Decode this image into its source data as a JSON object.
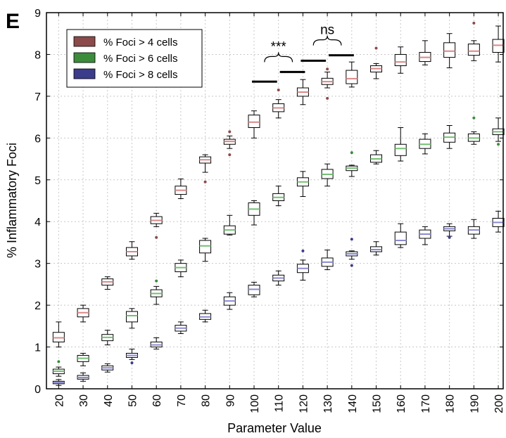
{
  "panel_label": "E",
  "chart_data": {
    "type": "box",
    "xlabel": "Parameter Value",
    "ylabel": "% Inflammatory Foci",
    "categories": [
      "20",
      "30",
      "40",
      "50",
      "60",
      "70",
      "80",
      "90",
      "100",
      "110",
      "120",
      "130",
      "140",
      "150",
      "160",
      "170",
      "180",
      "190",
      "200"
    ],
    "x": [
      20,
      30,
      40,
      50,
      60,
      70,
      80,
      90,
      100,
      110,
      120,
      130,
      140,
      150,
      160,
      170,
      180,
      190,
      200
    ],
    "xlim": [
      15,
      202
    ],
    "ylim": [
      0,
      9
    ],
    "yticks": [
      0,
      1,
      2,
      3,
      4,
      5,
      6,
      7,
      8,
      9
    ],
    "grid": true,
    "legend_position": "top-left",
    "series": [
      {
        "name": "% Foci > 4 cells",
        "color": "#8c4a4a",
        "median_color": "#d98888",
        "boxes": [
          {
            "q1": 1.12,
            "median": 1.22,
            "q3": 1.35,
            "whisker_low": 1.0,
            "whisker_high": 1.6,
            "outliers": []
          },
          {
            "q1": 1.72,
            "median": 1.82,
            "q3": 1.92,
            "whisker_low": 1.6,
            "whisker_high": 2.0,
            "outliers": []
          },
          {
            "q1": 2.48,
            "median": 2.56,
            "q3": 2.63,
            "whisker_low": 2.38,
            "whisker_high": 2.68,
            "outliers": []
          },
          {
            "q1": 3.18,
            "median": 3.28,
            "q3": 3.38,
            "whisker_low": 3.1,
            "whisker_high": 3.52,
            "outliers": []
          },
          {
            "q1": 3.95,
            "median": 4.03,
            "q3": 4.12,
            "whisker_low": 3.88,
            "whisker_high": 4.2,
            "outliers": [
              3.62
            ]
          },
          {
            "q1": 4.65,
            "median": 4.75,
            "q3": 4.85,
            "whisker_low": 4.55,
            "whisker_high": 5.02,
            "outliers": []
          },
          {
            "q1": 5.4,
            "median": 5.48,
            "q3": 5.55,
            "whisker_low": 5.18,
            "whisker_high": 5.6,
            "outliers": [
              4.95
            ]
          },
          {
            "q1": 5.85,
            "median": 5.92,
            "q3": 5.97,
            "whisker_low": 5.75,
            "whisker_high": 6.05,
            "outliers": [
              5.6,
              6.15
            ]
          },
          {
            "q1": 6.25,
            "median": 6.38,
            "q3": 6.55,
            "whisker_low": 6.0,
            "whisker_high": 6.65,
            "outliers": []
          },
          {
            "q1": 6.63,
            "median": 6.72,
            "q3": 6.82,
            "whisker_low": 6.48,
            "whisker_high": 6.92,
            "outliers": [
              7.15
            ]
          },
          {
            "q1": 7.0,
            "median": 7.1,
            "q3": 7.2,
            "whisker_low": 6.8,
            "whisker_high": 7.4,
            "outliers": []
          },
          {
            "q1": 7.28,
            "median": 7.35,
            "q3": 7.43,
            "whisker_low": 7.2,
            "whisker_high": 7.58,
            "outliers": [
              6.95,
              7.65
            ]
          },
          {
            "q1": 7.3,
            "median": 7.42,
            "q3": 7.62,
            "whisker_low": 7.22,
            "whisker_high": 7.82,
            "outliers": []
          },
          {
            "q1": 7.58,
            "median": 7.66,
            "q3": 7.73,
            "whisker_low": 7.42,
            "whisker_high": 7.78,
            "outliers": [
              8.15
            ]
          },
          {
            "q1": 7.73,
            "median": 7.82,
            "q3": 8.0,
            "whisker_low": 7.55,
            "whisker_high": 8.18,
            "outliers": []
          },
          {
            "q1": 7.83,
            "median": 7.93,
            "q3": 8.05,
            "whisker_low": 7.75,
            "whisker_high": 8.33,
            "outliers": []
          },
          {
            "q1": 7.93,
            "median": 8.08,
            "q3": 8.28,
            "whisker_low": 7.68,
            "whisker_high": 8.5,
            "outliers": []
          },
          {
            "q1": 7.98,
            "median": 8.08,
            "q3": 8.25,
            "whisker_low": 7.85,
            "whisker_high": 8.33,
            "outliers": [
              8.75
            ]
          },
          {
            "q1": 8.05,
            "median": 8.22,
            "q3": 8.36,
            "whisker_low": 7.82,
            "whisker_high": 8.68,
            "outliers": []
          }
        ]
      },
      {
        "name": "% Foci > 6 cells",
        "color": "#3c8c3c",
        "median_color": "#74bf74",
        "boxes": [
          {
            "q1": 0.36,
            "median": 0.42,
            "q3": 0.47,
            "whisker_low": 0.3,
            "whisker_high": 0.52,
            "outliers": [
              0.65
            ]
          },
          {
            "q1": 0.65,
            "median": 0.73,
            "q3": 0.8,
            "whisker_low": 0.55,
            "whisker_high": 0.85,
            "outliers": []
          },
          {
            "q1": 1.15,
            "median": 1.23,
            "q3": 1.3,
            "whisker_low": 1.05,
            "whisker_high": 1.4,
            "outliers": []
          },
          {
            "q1": 1.6,
            "median": 1.75,
            "q3": 1.85,
            "whisker_low": 1.45,
            "whisker_high": 1.92,
            "outliers": []
          },
          {
            "q1": 2.2,
            "median": 2.28,
            "q3": 2.37,
            "whisker_low": 2.02,
            "whisker_high": 2.45,
            "outliers": [
              2.58
            ]
          },
          {
            "q1": 2.8,
            "median": 2.9,
            "q3": 3.0,
            "whisker_low": 2.68,
            "whisker_high": 3.08,
            "outliers": []
          },
          {
            "q1": 3.25,
            "median": 3.42,
            "q3": 3.55,
            "whisker_low": 3.05,
            "whisker_high": 3.6,
            "outliers": []
          },
          {
            "q1": 3.7,
            "median": 3.8,
            "q3": 3.9,
            "whisker_low": 3.68,
            "whisker_high": 4.15,
            "outliers": []
          },
          {
            "q1": 4.15,
            "median": 4.3,
            "q3": 4.45,
            "whisker_low": 3.92,
            "whisker_high": 4.5,
            "outliers": []
          },
          {
            "q1": 4.5,
            "median": 4.58,
            "q3": 4.67,
            "whisker_low": 4.38,
            "whisker_high": 4.85,
            "outliers": []
          },
          {
            "q1": 4.85,
            "median": 4.95,
            "q3": 5.05,
            "whisker_low": 4.6,
            "whisker_high": 5.2,
            "outliers": []
          },
          {
            "q1": 5.03,
            "median": 5.13,
            "q3": 5.25,
            "whisker_low": 4.85,
            "whisker_high": 5.38,
            "outliers": []
          },
          {
            "q1": 5.22,
            "median": 5.28,
            "q3": 5.33,
            "whisker_low": 5.08,
            "whisker_high": 5.35,
            "outliers": [
              5.65
            ]
          },
          {
            "q1": 5.42,
            "median": 5.5,
            "q3": 5.6,
            "whisker_low": 5.38,
            "whisker_high": 5.7,
            "outliers": []
          },
          {
            "q1": 5.58,
            "median": 5.75,
            "q3": 5.85,
            "whisker_low": 5.45,
            "whisker_high": 6.25,
            "outliers": []
          },
          {
            "q1": 5.75,
            "median": 5.85,
            "q3": 5.97,
            "whisker_low": 5.62,
            "whisker_high": 6.1,
            "outliers": []
          },
          {
            "q1": 5.9,
            "median": 6.02,
            "q3": 6.12,
            "whisker_low": 5.75,
            "whisker_high": 6.3,
            "outliers": []
          },
          {
            "q1": 5.92,
            "median": 6.0,
            "q3": 6.1,
            "whisker_low": 5.85,
            "whisker_high": 6.15,
            "outliers": [
              6.48
            ]
          },
          {
            "q1": 6.08,
            "median": 6.15,
            "q3": 6.22,
            "whisker_low": 5.92,
            "whisker_high": 6.48,
            "outliers": [
              5.85
            ]
          }
        ]
      },
      {
        "name": "% Foci > 8 cells",
        "color": "#3c3c8c",
        "median_color": "#8a8ad0",
        "boxes": [
          {
            "q1": 0.12,
            "median": 0.15,
            "q3": 0.18,
            "whisker_low": 0.08,
            "whisker_high": 0.22,
            "outliers": []
          },
          {
            "q1": 0.23,
            "median": 0.27,
            "q3": 0.32,
            "whisker_low": 0.18,
            "whisker_high": 0.38,
            "outliers": []
          },
          {
            "q1": 0.45,
            "median": 0.5,
            "q3": 0.55,
            "whisker_low": 0.4,
            "whisker_high": 0.6,
            "outliers": []
          },
          {
            "q1": 0.75,
            "median": 0.8,
            "q3": 0.85,
            "whisker_low": 0.7,
            "whisker_high": 0.95,
            "outliers": [
              0.62
            ]
          },
          {
            "q1": 1.0,
            "median": 1.05,
            "q3": 1.12,
            "whisker_low": 0.95,
            "whisker_high": 1.22,
            "outliers": []
          },
          {
            "q1": 1.38,
            "median": 1.45,
            "q3": 1.52,
            "whisker_low": 1.32,
            "whisker_high": 1.6,
            "outliers": []
          },
          {
            "q1": 1.66,
            "median": 1.72,
            "q3": 1.8,
            "whisker_low": 1.6,
            "whisker_high": 1.88,
            "outliers": []
          },
          {
            "q1": 2.0,
            "median": 2.1,
            "q3": 2.2,
            "whisker_low": 1.9,
            "whisker_high": 2.3,
            "outliers": []
          },
          {
            "q1": 2.25,
            "median": 2.38,
            "q3": 2.48,
            "whisker_low": 2.2,
            "whisker_high": 2.55,
            "outliers": []
          },
          {
            "q1": 2.58,
            "median": 2.65,
            "q3": 2.72,
            "whisker_low": 2.48,
            "whisker_high": 2.82,
            "outliers": []
          },
          {
            "q1": 2.78,
            "median": 2.88,
            "q3": 2.98,
            "whisker_low": 2.6,
            "whisker_high": 3.08,
            "outliers": [
              3.3
            ]
          },
          {
            "q1": 2.93,
            "median": 3.03,
            "q3": 3.13,
            "whisker_low": 2.85,
            "whisker_high": 3.32,
            "outliers": []
          },
          {
            "q1": 3.18,
            "median": 3.23,
            "q3": 3.28,
            "whisker_low": 3.1,
            "whisker_high": 3.3,
            "outliers": [
              2.95,
              3.58
            ]
          },
          {
            "q1": 3.28,
            "median": 3.33,
            "q3": 3.4,
            "whisker_low": 3.2,
            "whisker_high": 3.52,
            "outliers": []
          },
          {
            "q1": 3.45,
            "median": 3.55,
            "q3": 3.75,
            "whisker_low": 3.38,
            "whisker_high": 3.95,
            "outliers": []
          },
          {
            "q1": 3.6,
            "median": 3.7,
            "q3": 3.8,
            "whisker_low": 3.45,
            "whisker_high": 3.88,
            "outliers": []
          },
          {
            "q1": 3.78,
            "median": 3.83,
            "q3": 3.88,
            "whisker_low": 3.65,
            "whisker_high": 3.95,
            "outliers": [
              3.62
            ]
          },
          {
            "q1": 3.7,
            "median": 3.8,
            "q3": 3.88,
            "whisker_low": 3.6,
            "whisker_high": 4.05,
            "outliers": []
          },
          {
            "q1": 3.88,
            "median": 3.98,
            "q3": 4.08,
            "whisker_low": 3.75,
            "whisker_high": 4.25,
            "outliers": []
          }
        ]
      }
    ],
    "significance": [
      {
        "label": "***",
        "group1": [
          100,
          110
        ],
        "group2": [
          110,
          120
        ],
        "bar_y": [
          7.35,
          7.58
        ]
      },
      {
        "label": "ns",
        "group1": [
          120,
          130
        ],
        "group2": [
          130,
          140
        ],
        "bar_y": [
          7.85,
          7.98
        ]
      }
    ]
  }
}
